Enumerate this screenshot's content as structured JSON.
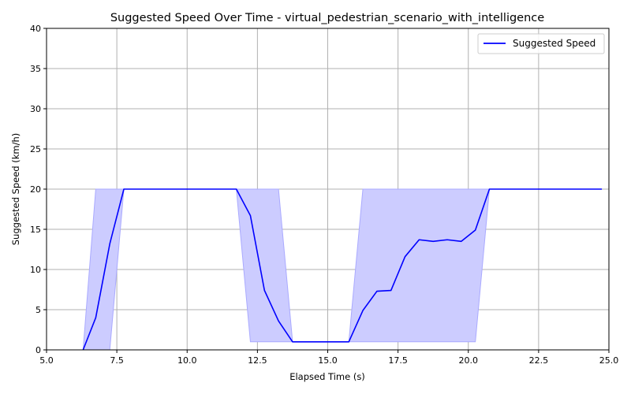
{
  "chart_data": {
    "type": "line",
    "title": "Suggested Speed Over Time - virtual_pedestrian_scenario_with_intelligence",
    "xlabel": "Elapsed Time (s)",
    "ylabel": "Suggested Speed (km/h)",
    "xlim": [
      5.0,
      25.0
    ],
    "ylim": [
      0,
      40
    ],
    "xticks": [
      5.0,
      7.5,
      10.0,
      12.5,
      15.0,
      17.5,
      20.0,
      22.5,
      25.0
    ],
    "xtick_labels": [
      "5.0",
      "7.5",
      "10.0",
      "12.5",
      "15.0",
      "17.5",
      "20.0",
      "22.5",
      "25.0"
    ],
    "yticks": [
      0,
      5,
      10,
      15,
      20,
      25,
      30,
      35,
      40
    ],
    "ytick_labels": [
      "0",
      "5",
      "10",
      "15",
      "20",
      "25",
      "30",
      "35",
      "40"
    ],
    "grid": true,
    "legend_position": "top-right",
    "series": [
      {
        "name": "Suggested Speed",
        "color": "#0000ff",
        "points": [
          [
            6.3,
            0
          ],
          [
            6.75,
            4.0
          ],
          [
            7.25,
            13.2
          ],
          [
            7.75,
            20
          ],
          [
            8.25,
            20
          ],
          [
            9.75,
            20
          ],
          [
            11.75,
            20
          ],
          [
            12.25,
            16.7
          ],
          [
            12.75,
            7.4
          ],
          [
            13.25,
            3.6
          ],
          [
            13.75,
            1.0
          ],
          [
            14.25,
            1.0
          ],
          [
            15.25,
            1.0
          ],
          [
            15.75,
            1.0
          ],
          [
            16.25,
            4.9
          ],
          [
            16.75,
            7.3
          ],
          [
            17.25,
            7.4
          ],
          [
            17.75,
            11.6
          ],
          [
            18.25,
            13.7
          ],
          [
            18.75,
            13.5
          ],
          [
            19.25,
            13.7
          ],
          [
            19.75,
            13.5
          ],
          [
            20.25,
            14.9
          ],
          [
            20.75,
            20
          ],
          [
            21.25,
            20
          ],
          [
            24.75,
            20
          ]
        ]
      }
    ],
    "band": {
      "color": "#ccccff",
      "edge_color": "#aaaaff",
      "polygon": [
        [
          6.3,
          0
        ],
        [
          6.75,
          20
        ],
        [
          7.75,
          20
        ],
        [
          8.25,
          20
        ],
        [
          11.75,
          20
        ],
        [
          12.25,
          20
        ],
        [
          13.25,
          20
        ],
        [
          13.75,
          1.0
        ],
        [
          15.75,
          1.0
        ],
        [
          16.25,
          20
        ],
        [
          20.75,
          20
        ],
        [
          20.25,
          1.0
        ],
        [
          18.25,
          1.0
        ],
        [
          17.25,
          1.0
        ],
        [
          16.25,
          1.0
        ],
        [
          15.75,
          1.0
        ],
        [
          13.75,
          1.0
        ],
        [
          12.25,
          1.0
        ],
        [
          11.75,
          20
        ],
        [
          7.75,
          20
        ],
        [
          7.25,
          0
        ]
      ]
    }
  }
}
